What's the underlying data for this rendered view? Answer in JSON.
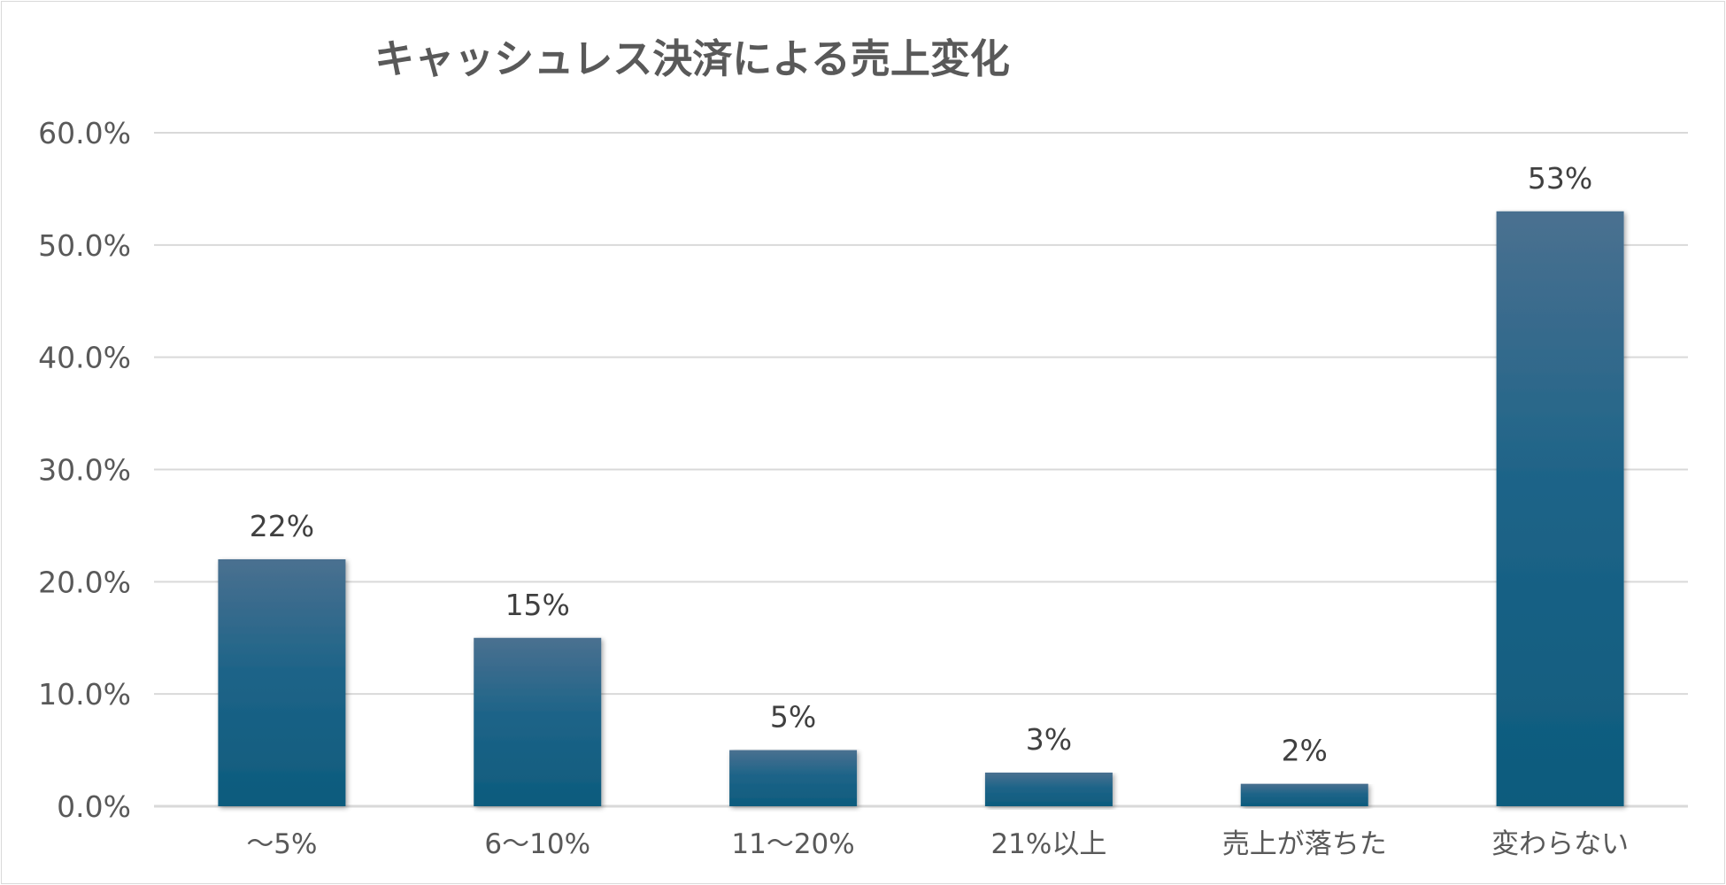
{
  "chart_data": {
    "type": "bar",
    "title": "キャッシュレス決済による売上変化",
    "categories": [
      "～5%",
      "6～10%",
      "11～20%",
      "21%以上",
      "売上が落ちた",
      "変わらない"
    ],
    "values": [
      22,
      15,
      5,
      3,
      2,
      53
    ],
    "data_labels": [
      "22%",
      "15%",
      "5%",
      "3%",
      "2%",
      "53%"
    ],
    "ylim": [
      0,
      60
    ],
    "yticks": [
      0,
      10,
      20,
      30,
      40,
      50,
      60
    ],
    "ytick_labels": [
      "0.0%",
      "10.0%",
      "20.0%",
      "30.0%",
      "40.0%",
      "50.0%",
      "60.0%"
    ],
    "xlabel": "",
    "ylabel": "",
    "grid": true,
    "legend": "none",
    "colors": {
      "bar_top": "#4a7090",
      "bar_mid": "#1e6488",
      "bar_bottom": "#0d5b7d",
      "grid": "#d9d9d9",
      "axis": "#d9d9d9"
    }
  }
}
